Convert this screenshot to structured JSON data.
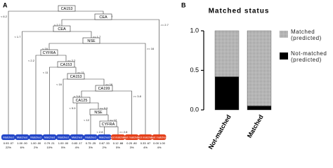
{
  "tree": {
    "panel_label": "A",
    "nodes": [
      {
        "label": "CA153",
        "left": "< 6.2",
        "right": ">= 6.2"
      },
      {
        "label": "CEA",
        "left": "< 2.7",
        "right": ">= 2.7"
      },
      {
        "label": "CEA",
        "left": "< 1.7",
        "right": ">= 1.7"
      },
      {
        "label": "NSE",
        "left": "< 16",
        "right": ">= 16"
      },
      {
        "label": "CYFRA",
        "left": "< 2.2",
        "right": ">= 2.2"
      },
      {
        "label": "CA153",
        "left": "< 11",
        "right": ">= 11"
      },
      {
        "label": "CA153",
        "left": "< 16",
        "right": ">= 16"
      },
      {
        "label": "CA199",
        "left": "< 3.8",
        "right": ">= 3.8"
      },
      {
        "label": "CA125",
        "left": "< 9.9",
        "right": ">= 9.9"
      },
      {
        "label": "NSE",
        "left": "< 12",
        "right": ">= 12"
      },
      {
        "label": "CYFRA",
        "left": "< 2.8",
        "right": ">= 2.8"
      }
    ],
    "leaves": [
      {
        "label": "Matched",
        "prob": "0.93 .07",
        "pct": "22%",
        "color": "#2346c8"
      },
      {
        "label": "Matched",
        "prob": "1.00 .00",
        "pct": "6%",
        "color": "#2346c8"
      },
      {
        "label": "Matched",
        "prob": "1.00 .00",
        "pct": "2%",
        "color": "#2346c8"
      },
      {
        "label": "Matched",
        "prob": "0.79 .21",
        "pct": "10%",
        "color": "#2346c8"
      },
      {
        "label": "Matched",
        "prob": "1.00 .00",
        "pct": "5%",
        "color": "#2346c8"
      },
      {
        "label": "Matched",
        "prob": "0.83 .17",
        "pct": "4%",
        "color": "#2346c8"
      },
      {
        "label": "Matched",
        "prob": "0.75 .25",
        "pct": "3%",
        "color": "#2346c8"
      },
      {
        "label": "Matched",
        "prob": "0.67 .33",
        "pct": "2%",
        "color": "#2346c8"
      },
      {
        "label": "Not matched",
        "prob": "0.12 .88",
        "pct": "5%",
        "color": "#e4401a"
      },
      {
        "label": "Not matched",
        "prob": "0.20 .80",
        "pct": "3%",
        "color": "#e4401a"
      },
      {
        "label": "Not matched",
        "prob": "0.33 .67",
        "pct": "4%",
        "color": "#e4401a"
      },
      {
        "label": "Not matched",
        "prob": "0.00 1.00",
        "pct": "4%",
        "color": "#e4401a"
      }
    ]
  },
  "chart_data": {
    "type": "stacked_bar",
    "panel_label": "B",
    "title": "Matched status",
    "categories": [
      "Not-matched",
      "Matched"
    ],
    "series": [
      {
        "name": "Not-matched (predicted)",
        "color": "#000000",
        "values": [
          0.42,
          0.05
        ]
      },
      {
        "name": "Matched (predicted)",
        "color": "#a3a3a3",
        "values": [
          0.58,
          0.95
        ]
      }
    ],
    "ylim": [
      0,
      1
    ],
    "yticks": [
      {
        "value": 0,
        "label": "0.0"
      },
      {
        "value": 0.5,
        "label": "0.5"
      },
      {
        "value": 1,
        "label": "1.0"
      }
    ]
  }
}
